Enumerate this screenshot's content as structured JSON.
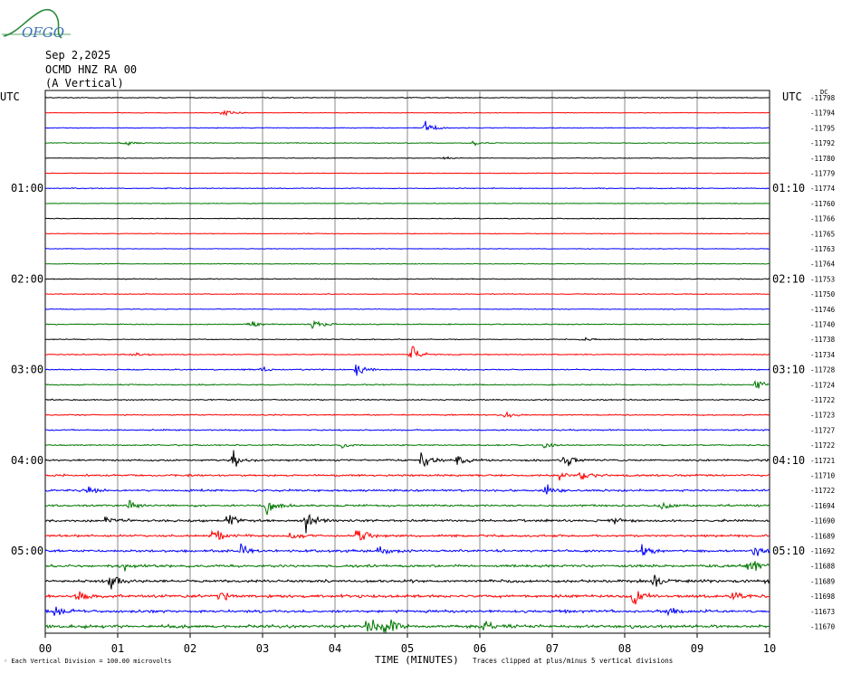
{
  "header": {
    "logo_text": "OFGO",
    "date": "Sep 2,2025",
    "station": "OCMD HNZ RA 00",
    "component": "(A Vertical)"
  },
  "left_axis": {
    "title": "UTC",
    "labels": [
      {
        "row": 6,
        "text": "01:00"
      },
      {
        "row": 12,
        "text": "02:00"
      },
      {
        "row": 18,
        "text": "03:00"
      },
      {
        "row": 24,
        "text": "04:00"
      },
      {
        "row": 30,
        "text": "05:00"
      }
    ]
  },
  "right_axis": {
    "title": "UTC",
    "dc_label": "DC",
    "labels": [
      {
        "row": 6,
        "text": "01:10"
      },
      {
        "row": 12,
        "text": "02:10"
      },
      {
        "row": 18,
        "text": "03:10"
      },
      {
        "row": 24,
        "text": "04:10"
      },
      {
        "row": 30,
        "text": "05:10"
      }
    ]
  },
  "footer": {
    "scale_note": "Each Vertical Division =  100.00 microvolts",
    "xlabel": "TIME (MINUTES)",
    "clip_note": "Traces clipped at plus/minus 5 vertical divisions"
  },
  "chart_data": {
    "type": "line",
    "title": "",
    "xlabel": "TIME (MINUTES)",
    "ylabel": "UTC",
    "x_ticks": [
      "00",
      "01",
      "02",
      "03",
      "04",
      "05",
      "06",
      "07",
      "08",
      "09",
      "10"
    ],
    "xlim": [
      0,
      10
    ],
    "grid": true,
    "trace_colors": [
      "#000000",
      "#ff0000",
      "#0000ff",
      "#007700"
    ],
    "dc_offsets": [
      -11798,
      -11794,
      -11795,
      -11792,
      -11780,
      -11779,
      -11774,
      -11760,
      -11766,
      -11765,
      -11763,
      -11764,
      -11753,
      -11750,
      -11746,
      -11740,
      -11738,
      -11734,
      -11728,
      -11724,
      -11722,
      -11723,
      -11727,
      -11722,
      -11721,
      -11710,
      -11722,
      -11694,
      -11690,
      -11689,
      -11692,
      -11688,
      -11689,
      -11698,
      -11673,
      -11670
    ],
    "noise_levels": [
      0.6,
      0.5,
      0.6,
      0.6,
      0.5,
      0.5,
      0.7,
      0.5,
      0.6,
      0.6,
      0.5,
      0.6,
      0.7,
      0.6,
      0.6,
      0.8,
      0.7,
      0.8,
      0.9,
      0.9,
      0.9,
      0.9,
      1.0,
      1.0,
      1.4,
      1.5,
      1.5,
      1.5,
      1.7,
      1.7,
      1.8,
      1.9,
      2.0,
      2.1,
      2.1,
      2.3
    ],
    "events": [
      {
        "row": 1,
        "minute": 2.45,
        "amp": 7
      },
      {
        "row": 2,
        "minute": 5.25,
        "amp": 6
      },
      {
        "row": 3,
        "minute": 1.05,
        "amp": 4
      },
      {
        "row": 3,
        "minute": 5.9,
        "amp": 3
      },
      {
        "row": 4,
        "minute": 5.5,
        "amp": 2
      },
      {
        "row": 15,
        "minute": 2.8,
        "amp": 4
      },
      {
        "row": 15,
        "minute": 3.7,
        "amp": 6
      },
      {
        "row": 16,
        "minute": 7.4,
        "amp": 2
      },
      {
        "row": 17,
        "minute": 1.2,
        "amp": 3
      },
      {
        "row": 17,
        "minute": 5.05,
        "amp": 9
      },
      {
        "row": 18,
        "minute": 4.3,
        "amp": 7
      },
      {
        "row": 18,
        "minute": 3.0,
        "amp": 3
      },
      {
        "row": 19,
        "minute": 9.8,
        "amp": 7
      },
      {
        "row": 21,
        "minute": 6.35,
        "amp": 4
      },
      {
        "row": 23,
        "minute": 4.1,
        "amp": 3
      },
      {
        "row": 23,
        "minute": 6.9,
        "amp": 3
      },
      {
        "row": 24,
        "minute": 2.6,
        "amp": 9
      },
      {
        "row": 24,
        "minute": 5.2,
        "amp": 9
      },
      {
        "row": 24,
        "minute": 7.15,
        "amp": 8
      },
      {
        "row": 24,
        "minute": 5.7,
        "amp": 5
      },
      {
        "row": 25,
        "minute": 7.4,
        "amp": 6
      },
      {
        "row": 25,
        "minute": 7.1,
        "amp": 4
      },
      {
        "row": 26,
        "minute": 0.55,
        "amp": 6
      },
      {
        "row": 26,
        "minute": 6.9,
        "amp": 5
      },
      {
        "row": 27,
        "minute": 3.05,
        "amp": 8
      },
      {
        "row": 27,
        "minute": 1.15,
        "amp": 4
      },
      {
        "row": 27,
        "minute": 8.5,
        "amp": 4
      },
      {
        "row": 28,
        "minute": 0.85,
        "amp": 7
      },
      {
        "row": 28,
        "minute": 2.5,
        "amp": 8
      },
      {
        "row": 28,
        "minute": 3.6,
        "amp": 8
      },
      {
        "row": 28,
        "minute": 7.85,
        "amp": 5
      },
      {
        "row": 29,
        "minute": 2.3,
        "amp": 8
      },
      {
        "row": 29,
        "minute": 4.3,
        "amp": 9
      },
      {
        "row": 29,
        "minute": 3.4,
        "amp": 5
      },
      {
        "row": 30,
        "minute": 2.7,
        "amp": 5
      },
      {
        "row": 30,
        "minute": 4.6,
        "amp": 5
      },
      {
        "row": 30,
        "minute": 8.25,
        "amp": 6
      },
      {
        "row": 30,
        "minute": 9.8,
        "amp": 5
      },
      {
        "row": 31,
        "minute": 9.7,
        "amp": 9
      },
      {
        "row": 31,
        "minute": 1.1,
        "amp": 4
      },
      {
        "row": 32,
        "minute": 0.9,
        "amp": 6
      },
      {
        "row": 32,
        "minute": 8.4,
        "amp": 8
      },
      {
        "row": 32,
        "minute": 9.95,
        "amp": 4
      },
      {
        "row": 33,
        "minute": 0.45,
        "amp": 7
      },
      {
        "row": 33,
        "minute": 2.4,
        "amp": 7
      },
      {
        "row": 33,
        "minute": 8.1,
        "amp": 8
      },
      {
        "row": 33,
        "minute": 9.5,
        "amp": 5
      },
      {
        "row": 34,
        "minute": 0.15,
        "amp": 6
      },
      {
        "row": 34,
        "minute": 8.6,
        "amp": 4
      },
      {
        "row": 35,
        "minute": 4.7,
        "amp": 14
      },
      {
        "row": 35,
        "minute": 4.45,
        "amp": 9
      },
      {
        "row": 35,
        "minute": 6.05,
        "amp": 5
      }
    ]
  }
}
